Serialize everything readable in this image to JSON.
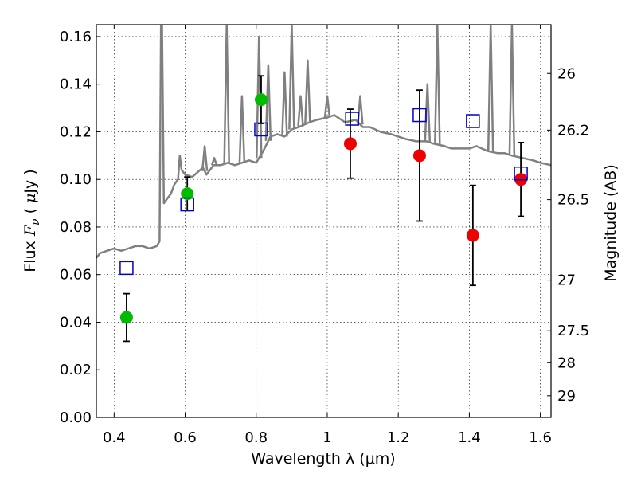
{
  "chart_data": {
    "type": "scatter",
    "title": "",
    "xlabel": "Wavelength  λ (μm)",
    "ylabel": "Flux  F_ν  ( μJy )",
    "ylabel_parts": {
      "prefix": "Flux  ",
      "var": "F",
      "sub": "ν",
      "unit_open": "  ( ",
      "mu": "μ",
      "unit_rest": "Jy )"
    },
    "ylabel_right": "Magnitude (AB)",
    "xlim": [
      0.35,
      1.63
    ],
    "ylim": [
      0.0,
      0.165
    ],
    "grid": true,
    "x_ticks": [
      "0.4",
      "0.6",
      "0.8",
      "1",
      "1.2",
      "1.4",
      "1.6"
    ],
    "y_ticks": [
      "0.00",
      "0.02",
      "0.04",
      "0.06",
      "0.08",
      "0.10",
      "0.12",
      "0.14",
      "0.16"
    ],
    "right_ticks": [
      {
        "label": "26",
        "flux": 0.1445
      },
      {
        "label": "26.2",
        "flux": 0.1207
      },
      {
        "label": "26.5",
        "flux": 0.0915
      },
      {
        "label": "27",
        "flux": 0.0577
      },
      {
        "label": "27.5",
        "flux": 0.0364
      },
      {
        "label": "28",
        "flux": 0.023
      },
      {
        "label": "29",
        "flux": 0.0091
      }
    ],
    "colors": {
      "green": "#00bb00",
      "red": "#ee0000",
      "blue": "#0000cc",
      "model": "#808080"
    },
    "series": [
      {
        "marker": "circle",
        "color": "#00bb00",
        "points": [
          {
            "x": 0.435,
            "y": 0.042,
            "err": 0.01
          },
          {
            "x": 0.606,
            "y": 0.094,
            "err": 0.007
          },
          {
            "x": 0.814,
            "y": 0.1335,
            "err": 0.01
          }
        ]
      },
      {
        "marker": "circle",
        "color": "#ee0000",
        "points": [
          {
            "x": 1.065,
            "y": 0.115,
            "err": 0.0145
          },
          {
            "x": 1.26,
            "y": 0.11,
            "err": 0.0275
          },
          {
            "x": 1.41,
            "y": 0.0765,
            "err": 0.021
          },
          {
            "x": 1.545,
            "y": 0.1,
            "err": 0.0155
          }
        ]
      },
      {
        "marker": "open-square",
        "color": "#0000cc",
        "points": [
          {
            "x": 0.435,
            "y": 0.0628
          },
          {
            "x": 0.606,
            "y": 0.0895
          },
          {
            "x": 0.814,
            "y": 0.121
          },
          {
            "x": 1.07,
            "y": 0.1255
          },
          {
            "x": 1.26,
            "y": 0.127
          },
          {
            "x": 1.41,
            "y": 0.1245
          },
          {
            "x": 1.545,
            "y": 0.1025
          }
        ]
      }
    ],
    "model_spectrum": {
      "color": "#808080",
      "x": [
        0.35,
        0.36,
        0.38,
        0.4,
        0.42,
        0.44,
        0.46,
        0.48,
        0.5,
        0.52,
        0.528,
        0.532,
        0.535,
        0.54,
        0.55,
        0.56,
        0.57,
        0.58,
        0.585,
        0.59,
        0.6,
        0.62,
        0.65,
        0.66,
        0.67,
        0.68,
        0.7,
        0.72,
        0.74,
        0.76,
        0.78,
        0.8,
        0.82,
        0.84,
        0.86,
        0.88,
        0.9,
        0.92,
        0.95,
        0.97,
        1.0,
        1.02,
        1.05,
        1.08,
        1.1,
        1.12,
        1.15,
        1.18,
        1.2,
        1.22,
        1.25,
        1.28,
        1.3,
        1.33,
        1.35,
        1.38,
        1.4,
        1.42,
        1.45,
        1.48,
        1.5,
        1.52,
        1.55,
        1.58,
        1.6,
        1.63
      ],
      "y": [
        0.067,
        0.069,
        0.07,
        0.071,
        0.07,
        0.071,
        0.072,
        0.072,
        0.071,
        0.072,
        0.074,
        0.165,
        0.165,
        0.09,
        0.092,
        0.094,
        0.098,
        0.1,
        0.11,
        0.104,
        0.102,
        0.101,
        0.105,
        0.102,
        0.104,
        0.106,
        0.106,
        0.107,
        0.106,
        0.107,
        0.108,
        0.107,
        0.112,
        0.118,
        0.119,
        0.118,
        0.121,
        0.122,
        0.124,
        0.125,
        0.126,
        0.127,
        0.124,
        0.125,
        0.122,
        0.122,
        0.12,
        0.119,
        0.118,
        0.117,
        0.116,
        0.116,
        0.115,
        0.114,
        0.113,
        0.113,
        0.113,
        0.114,
        0.112,
        0.111,
        0.111,
        0.11,
        0.109,
        0.108,
        0.107,
        0.106
      ],
      "lines": [
        {
          "x": 0.655,
          "y": 0.114
        },
        {
          "x": 0.682,
          "y": 0.109
        },
        {
          "x": 0.717,
          "y": 0.165
        },
        {
          "x": 0.76,
          "y": 0.135
        },
        {
          "x": 0.808,
          "y": 0.16
        },
        {
          "x": 0.834,
          "y": 0.148
        },
        {
          "x": 0.88,
          "y": 0.145
        },
        {
          "x": 0.9,
          "y": 0.165
        },
        {
          "x": 0.925,
          "y": 0.135
        },
        {
          "x": 0.945,
          "y": 0.15
        },
        {
          "x": 1.0,
          "y": 0.135
        },
        {
          "x": 1.093,
          "y": 0.135
        },
        {
          "x": 1.282,
          "y": 0.14
        },
        {
          "x": 1.31,
          "y": 0.165
        },
        {
          "x": 1.46,
          "y": 0.165
        },
        {
          "x": 1.52,
          "y": 0.165
        }
      ]
    }
  }
}
